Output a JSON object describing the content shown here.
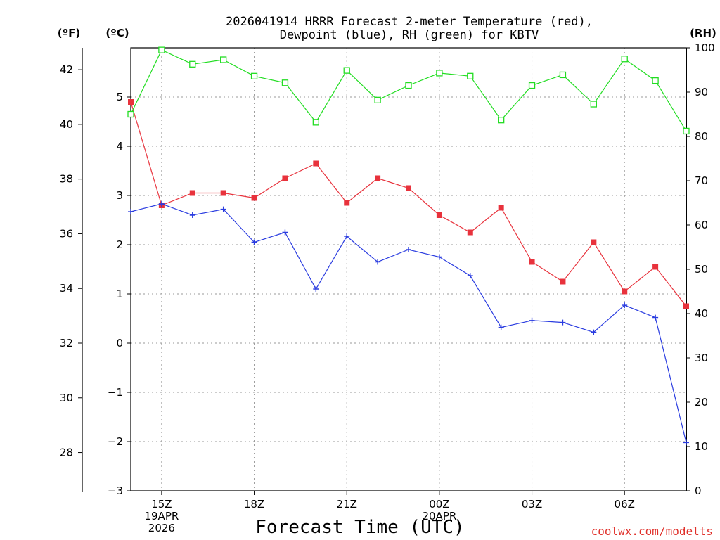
{
  "chart_data": {
    "type": "line",
    "title_line1": "2026041914 HRRR Forecast 2-meter Temperature (red),",
    "title_line2": "Dewpoint (blue), RH (green) for KBTV",
    "xlabel": "Forecast Time (UTC)",
    "credit": "coolwx.com/modelts",
    "units": {
      "fahrenheit": "(ºF)",
      "celsius": "(ºC)",
      "rh": "(RH)"
    },
    "x_hours": [
      14,
      15,
      16,
      17,
      18,
      19,
      20,
      21,
      22,
      23,
      24,
      25,
      26,
      27,
      28,
      29,
      30,
      31,
      32
    ],
    "x_range": [
      14,
      32
    ],
    "x_ticks": [
      {
        "hour": 15,
        "lines": [
          "15Z",
          "19APR",
          "2026"
        ]
      },
      {
        "hour": 18,
        "lines": [
          "18Z"
        ]
      },
      {
        "hour": 21,
        "lines": [
          "21Z"
        ]
      },
      {
        "hour": 24,
        "lines": [
          "00Z",
          "20APR"
        ]
      },
      {
        "hour": 27,
        "lines": [
          "03Z"
        ]
      },
      {
        "hour": 30,
        "lines": [
          "06Z"
        ]
      }
    ],
    "c_range": [
      -3,
      6
    ],
    "c_ticks": [
      -3,
      -2,
      -1,
      0,
      1,
      2,
      3,
      4,
      5
    ],
    "c_tick_labels": [
      "−3",
      "−2",
      "−1",
      "0",
      "1",
      "2",
      "3",
      "4",
      "5"
    ],
    "f_ticks": [
      28,
      30,
      32,
      34,
      36,
      38,
      40,
      42
    ],
    "rh_range": [
      0,
      100
    ],
    "rh_ticks": [
      0,
      10,
      20,
      30,
      40,
      50,
      60,
      70,
      80,
      90,
      100
    ],
    "series": [
      {
        "name": "Temperature",
        "unit": "C",
        "color": "#e8323c",
        "marker": "filled-square",
        "values": [
          4.9,
          2.8,
          3.05,
          3.05,
          2.95,
          3.35,
          3.65,
          2.85,
          3.35,
          3.15,
          2.6,
          2.25,
          2.75,
          1.65,
          1.25,
          2.05,
          1.05,
          1.55,
          0.75
        ]
      },
      {
        "name": "Dewpoint",
        "unit": "C",
        "color": "#2a3ce0",
        "marker": "plus",
        "values": [
          2.67,
          2.83,
          2.6,
          2.72,
          2.05,
          2.25,
          1.1,
          2.17,
          1.65,
          1.9,
          1.75,
          1.37,
          0.32,
          0.46,
          0.42,
          0.22,
          0.77,
          0.52,
          -2.02
        ]
      },
      {
        "name": "RH",
        "unit": "%",
        "color": "#22dd22",
        "marker": "open-square",
        "values": [
          85,
          99.5,
          96.3,
          97.3,
          93.6,
          92.1,
          83.2,
          94.9,
          88.2,
          91.5,
          94.3,
          93.6,
          83.7,
          91.5,
          93.9,
          87.3,
          97.5,
          92.6,
          81.2
        ]
      }
    ]
  }
}
